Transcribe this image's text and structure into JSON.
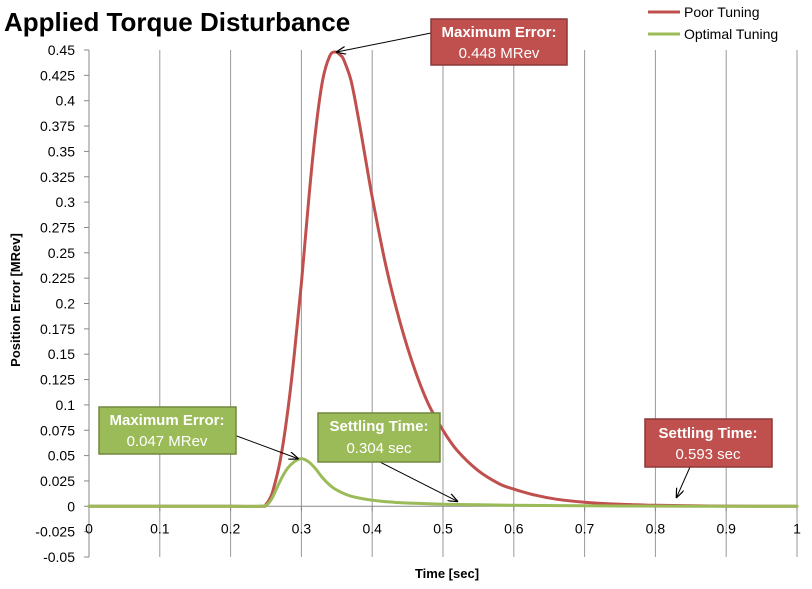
{
  "chart_data": {
    "type": "line",
    "title": "Applied Torque Disturbance",
    "xlabel": "Time [sec]",
    "ylabel": "Position Error [MRev]",
    "xlim": [
      0,
      1
    ],
    "ylim": [
      -0.05,
      0.45
    ],
    "x_ticks": [
      0,
      0.1,
      0.2,
      0.3,
      0.4,
      0.5,
      0.6,
      0.7,
      0.8,
      0.9,
      1
    ],
    "x_tick_labels": [
      "0",
      "0.1",
      "0.2",
      "0.3",
      "0.4",
      "0.5",
      "0.6",
      "0.7",
      "0.8",
      "0.9",
      "1"
    ],
    "y_ticks": [
      -0.05,
      -0.025,
      0,
      0.025,
      0.05,
      0.075,
      0.1,
      0.125,
      0.15,
      0.175,
      0.2,
      0.225,
      0.25,
      0.275,
      0.3,
      0.325,
      0.35,
      0.375,
      0.4,
      0.425,
      0.45
    ],
    "y_tick_labels": [
      "-0.05",
      "-0.025",
      "0",
      "0.025",
      "0.05",
      "0.075",
      "0.1",
      "0.125",
      "0.15",
      "0.175",
      "0.2",
      "0.225",
      "0.25",
      "0.275",
      "0.3",
      "0.325",
      "0.35",
      "0.375",
      "0.4",
      "0.425",
      "0.45"
    ],
    "grid": "vertical",
    "legend_position": "top-right",
    "series": [
      {
        "name": "Poor Tuning",
        "color": "#c0504d",
        "x": [
          0,
          0.1,
          0.2,
          0.245,
          0.25,
          0.255,
          0.26,
          0.27,
          0.28,
          0.29,
          0.3,
          0.31,
          0.32,
          0.33,
          0.34,
          0.348,
          0.355,
          0.36,
          0.37,
          0.38,
          0.39,
          0.4,
          0.42,
          0.44,
          0.46,
          0.48,
          0.5,
          0.52,
          0.55,
          0.58,
          0.6,
          0.63,
          0.66,
          0.7,
          0.75,
          0.8,
          0.85,
          0.9,
          0.95,
          1.0
        ],
        "y": [
          0,
          0,
          0,
          0,
          0.002,
          0.007,
          0.016,
          0.045,
          0.09,
          0.15,
          0.22,
          0.3,
          0.37,
          0.42,
          0.444,
          0.448,
          0.445,
          0.44,
          0.42,
          0.385,
          0.345,
          0.305,
          0.235,
          0.18,
          0.135,
          0.1,
          0.075,
          0.055,
          0.035,
          0.022,
          0.017,
          0.011,
          0.007,
          0.004,
          0.002,
          0.001,
          0.0005,
          0.0002,
          0.0001,
          0
        ]
      },
      {
        "name": "Optimal Tuning",
        "color": "#9bbb59",
        "x": [
          0,
          0.1,
          0.2,
          0.24,
          0.25,
          0.255,
          0.26,
          0.27,
          0.28,
          0.29,
          0.3,
          0.31,
          0.32,
          0.33,
          0.34,
          0.35,
          0.37,
          0.4,
          0.43,
          0.46,
          0.5,
          0.55,
          0.6,
          0.7,
          0.8,
          0.9,
          1.0
        ],
        "y": [
          0,
          0,
          0,
          0,
          0.001,
          0.004,
          0.01,
          0.025,
          0.037,
          0.044,
          0.047,
          0.044,
          0.037,
          0.028,
          0.021,
          0.016,
          0.01,
          0.006,
          0.004,
          0.003,
          0.002,
          0.0015,
          0.001,
          0.0005,
          0.0002,
          0.0001,
          0
        ]
      }
    ],
    "annotations": [
      {
        "id": "poor-max",
        "title": "Maximum Error:",
        "value": "0.448 MRev",
        "color": "#c0504d",
        "points_to": [
          0.35,
          0.448
        ]
      },
      {
        "id": "opt-max",
        "title": "Maximum Error:",
        "value": "0.047 MRev",
        "color": "#9bbb59",
        "points_to": [
          0.295,
          0.047
        ]
      },
      {
        "id": "opt-settle",
        "title": "Settling Time:",
        "value": "0.304 sec",
        "color": "#9bbb59",
        "points_to": [
          0.52,
          0.005
        ]
      },
      {
        "id": "poor-settle",
        "title": "Settling Time:",
        "value": "0.593 sec",
        "color": "#c0504d",
        "points_to": [
          0.83,
          0.009
        ]
      }
    ]
  }
}
